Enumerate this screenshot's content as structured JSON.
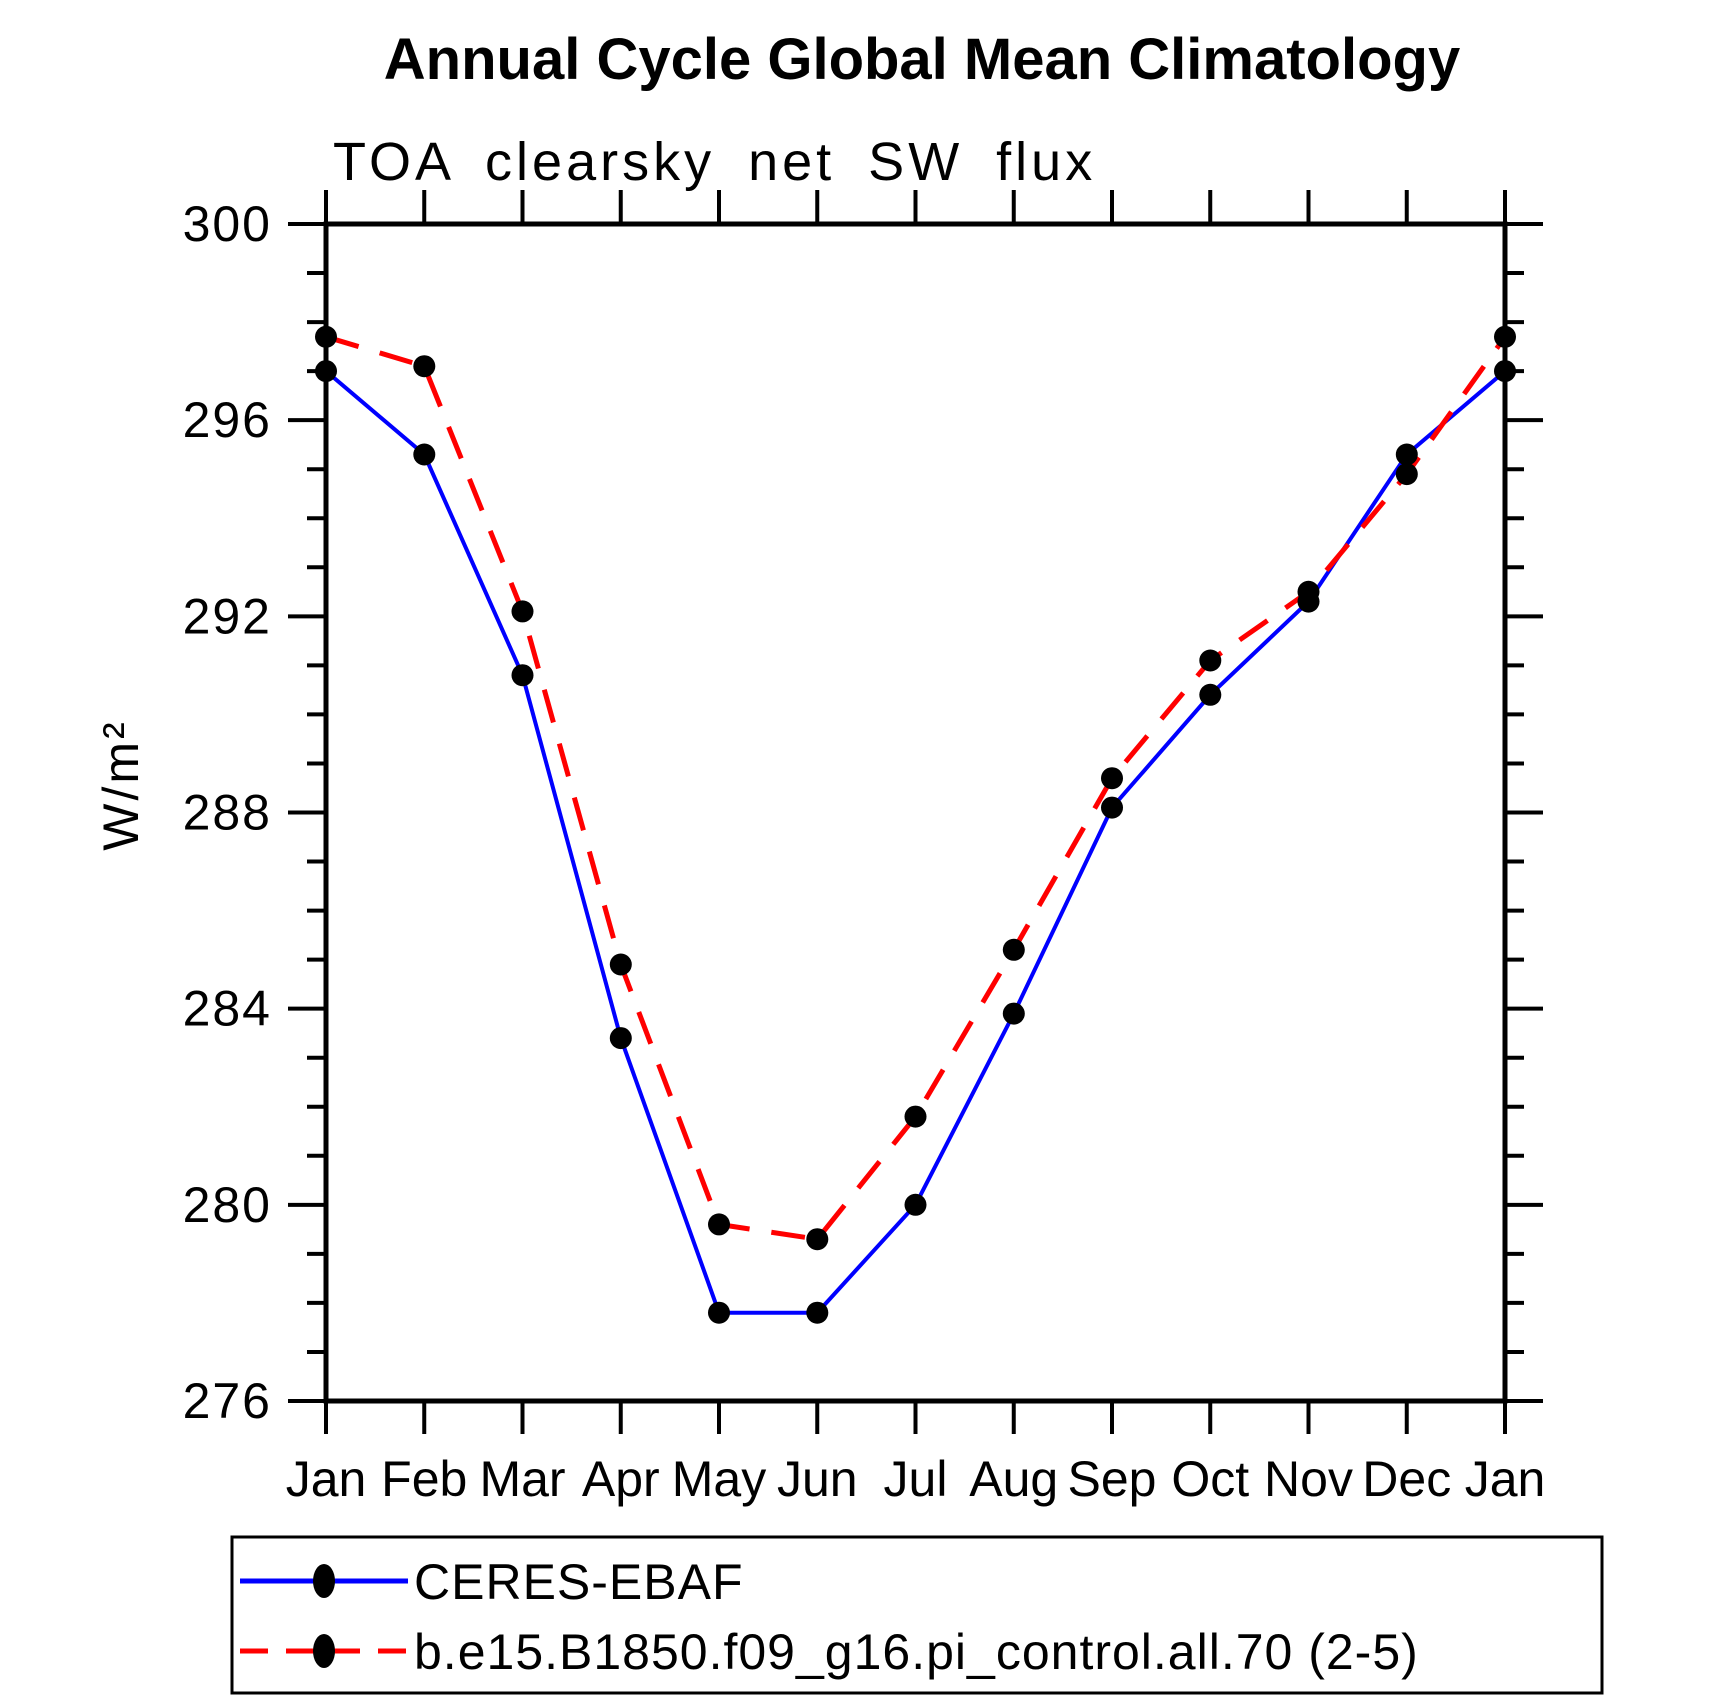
{
  "title": "Annual Cycle Global Mean Climatology",
  "subtitle": "TOA clearsky net SW flux",
  "chart_data": {
    "type": "line",
    "categories": [
      "Jan",
      "Feb",
      "Mar",
      "Apr",
      "May",
      "Jun",
      "Jul",
      "Aug",
      "Sep",
      "Oct",
      "Nov",
      "Dec",
      "Jan"
    ],
    "series": [
      {
        "name": "CERES-EBAF",
        "color": "#0000ff",
        "line_style": "solid",
        "marker": "filled-circle",
        "marker_color": "#000000",
        "values": [
          297.0,
          295.3,
          290.8,
          283.4,
          277.8,
          277.8,
          280.0,
          283.9,
          288.1,
          290.4,
          292.3,
          295.3,
          297.0
        ]
      },
      {
        "name": "b.e15.B1850.f09_g16.pi_control.all.70 (2-5)",
        "color": "#ff0000",
        "line_style": "dashed",
        "marker": "filled-circle",
        "marker_color": "#000000",
        "values": [
          297.7,
          297.1,
          292.1,
          284.9,
          279.6,
          279.3,
          281.8,
          285.2,
          288.7,
          291.1,
          292.5,
          294.9,
          297.7
        ]
      }
    ],
    "ylabel": "W/m²",
    "xlabel": "",
    "ylim": [
      276,
      300
    ],
    "ytick_major": 4,
    "ytick_minor": 1,
    "y_major_labels": [
      "300",
      "296",
      "292",
      "288",
      "284",
      "280",
      "276"
    ],
    "grid": "off",
    "legend_position": "bottom"
  }
}
